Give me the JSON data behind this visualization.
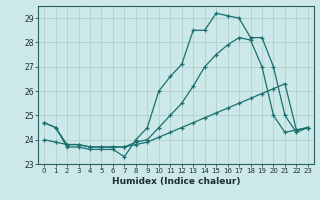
{
  "xlabel": "Humidex (Indice chaleur)",
  "ylabel": "",
  "xlim": [
    -0.5,
    23.5
  ],
  "ylim": [
    23.0,
    29.5
  ],
  "yticks": [
    23,
    24,
    25,
    26,
    27,
    28,
    29
  ],
  "xticks": [
    0,
    1,
    2,
    3,
    4,
    5,
    6,
    7,
    8,
    9,
    10,
    11,
    12,
    13,
    14,
    15,
    16,
    17,
    18,
    19,
    20,
    21,
    22,
    23
  ],
  "bg_color": "#cce8e8",
  "grid_color": "#aacccc",
  "line_color": "#1a7070",
  "line1_x": [
    0,
    1,
    2,
    3,
    4,
    5,
    6,
    7,
    8,
    9,
    10,
    11,
    12,
    13,
    14,
    15,
    16,
    17,
    18,
    19,
    20,
    21,
    22,
    23
  ],
  "line1_y": [
    24.7,
    24.5,
    23.7,
    23.7,
    23.6,
    23.6,
    23.6,
    23.3,
    24.0,
    24.5,
    26.0,
    26.6,
    27.1,
    28.5,
    28.5,
    29.2,
    29.1,
    29.0,
    28.2,
    28.2,
    27.0,
    25.0,
    24.3,
    24.5
  ],
  "line2_x": [
    0,
    1,
    2,
    3,
    4,
    5,
    6,
    7,
    8,
    9,
    10,
    11,
    12,
    13,
    14,
    15,
    16,
    17,
    18,
    19,
    20,
    21,
    22,
    23
  ],
  "line2_y": [
    24.0,
    23.9,
    23.8,
    23.8,
    23.7,
    23.7,
    23.7,
    23.7,
    23.8,
    23.9,
    24.1,
    24.3,
    24.5,
    24.7,
    24.9,
    25.1,
    25.3,
    25.5,
    25.7,
    25.9,
    26.1,
    26.3,
    24.4,
    24.5
  ],
  "line3_x": [
    0,
    1,
    2,
    3,
    4,
    5,
    6,
    7,
    8,
    9,
    10,
    11,
    12,
    13,
    14,
    15,
    16,
    17,
    18,
    19,
    20,
    21,
    22,
    23
  ],
  "line3_y": [
    24.7,
    24.5,
    23.8,
    23.8,
    23.7,
    23.7,
    23.7,
    23.7,
    23.9,
    24.0,
    24.5,
    25.0,
    25.5,
    26.2,
    27.0,
    27.5,
    27.9,
    28.2,
    28.1,
    27.0,
    25.0,
    24.3,
    24.4,
    24.5
  ]
}
